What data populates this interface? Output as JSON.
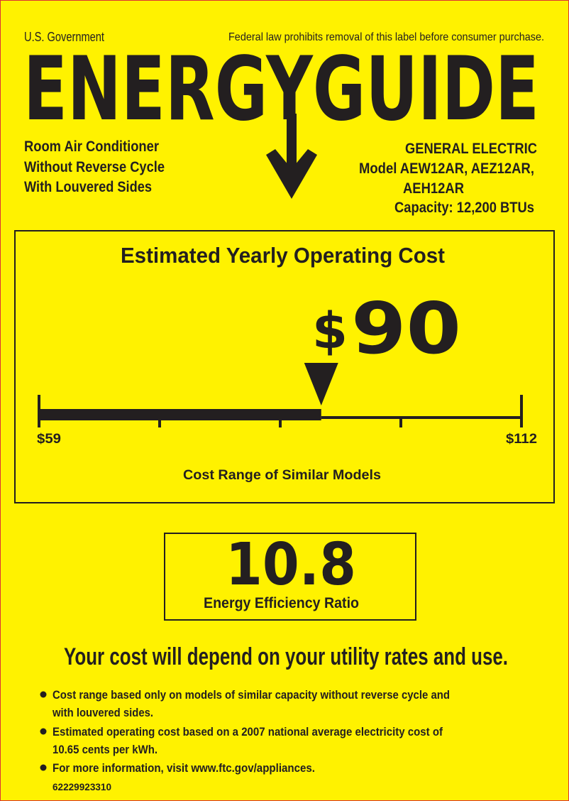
{
  "header": {
    "gov_label": "U.S. Government",
    "legal_notice": "Federal law prohibits removal of this label before consumer purchase.",
    "logo_text": "ENERGYGUIDE"
  },
  "product": {
    "type_lines": [
      "Room Air Conditioner",
      "Without Reverse Cycle",
      "With Louvered Sides"
    ],
    "manufacturer": "GENERAL ELECTRIC",
    "model_line1": "Model AEW12AR, AEZ12AR,",
    "model_line2": "AEH12AR",
    "capacity": "Capacity: 12,200 BTUs"
  },
  "cost": {
    "title": "Estimated Yearly Operating Cost",
    "currency": "$",
    "amount": "90",
    "value": 90,
    "range_min": 59,
    "range_max": 112,
    "min_label": "$59",
    "max_label": "$112",
    "range_caption": "Cost Range of Similar Models"
  },
  "efficiency": {
    "value": "10.8",
    "label": "Energy Efficiency Ratio"
  },
  "footer": {
    "headline": "Your cost will depend on your utility rates and use.",
    "bullets": [
      {
        "line1": "Cost range based only on models of similar capacity without reverse cycle and",
        "line2": "with louvered sides."
      },
      {
        "line1": "Estimated operating cost based on a 2007 national average electricity cost of",
        "line2": "10.65 cents per kWh."
      },
      {
        "line1": "For more information, visit www.ftc.gov/appliances."
      }
    ],
    "label_code": "62229923310"
  },
  "colors": {
    "background": "#fff200",
    "ink": "#231f20"
  }
}
